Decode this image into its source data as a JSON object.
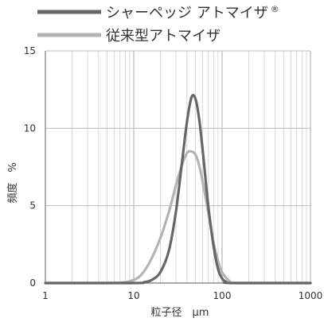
{
  "chart_data": {
    "type": "line",
    "title": "",
    "xlabel": "粒子径　μm",
    "ylabel": "頻度　%",
    "xscale": "log",
    "xlim": [
      1,
      1000
    ],
    "ylim": [
      0,
      15
    ],
    "x_ticks": [
      1,
      10,
      100,
      1000
    ],
    "x_tick_labels": [
      "1",
      "10",
      "100",
      "1000"
    ],
    "y_ticks": [
      0,
      5,
      10,
      15
    ],
    "y_tick_labels": [
      "0",
      "5",
      "10",
      "15"
    ],
    "grid": {
      "x_minor": true,
      "x_major": true,
      "y_major": true
    },
    "legend": {
      "placement": "top-left",
      "superscript": "®"
    },
    "series": [
      {
        "name": "シャーペッジ アトマイザ",
        "color": "#666666",
        "x": [
          1,
          10,
          13,
          16,
          20,
          25,
          30,
          35,
          40,
          45,
          50,
          55,
          60,
          65,
          70,
          80,
          90,
          100,
          110,
          130,
          1000
        ],
        "y": [
          0,
          0,
          0.05,
          0.2,
          0.7,
          2.1,
          4.6,
          7.7,
          10.4,
          12.0,
          11.9,
          10.6,
          8.7,
          6.7,
          4.9,
          2.4,
          0.9,
          0.3,
          0.1,
          0,
          0
        ]
      },
      {
        "name": "従来型アトマイザ",
        "color": "#b3b3b3",
        "x": [
          1,
          5,
          8,
          10,
          12,
          15,
          20,
          25,
          30,
          35,
          40,
          45,
          50,
          55,
          60,
          70,
          80,
          90,
          100,
          120,
          150,
          1000
        ],
        "y": [
          0,
          0,
          0.05,
          0.2,
          0.5,
          1.3,
          2.9,
          4.6,
          6.3,
          7.6,
          8.4,
          8.5,
          8.3,
          7.6,
          6.6,
          4.5,
          2.6,
          1.4,
          0.7,
          0.15,
          0,
          0
        ]
      }
    ]
  }
}
